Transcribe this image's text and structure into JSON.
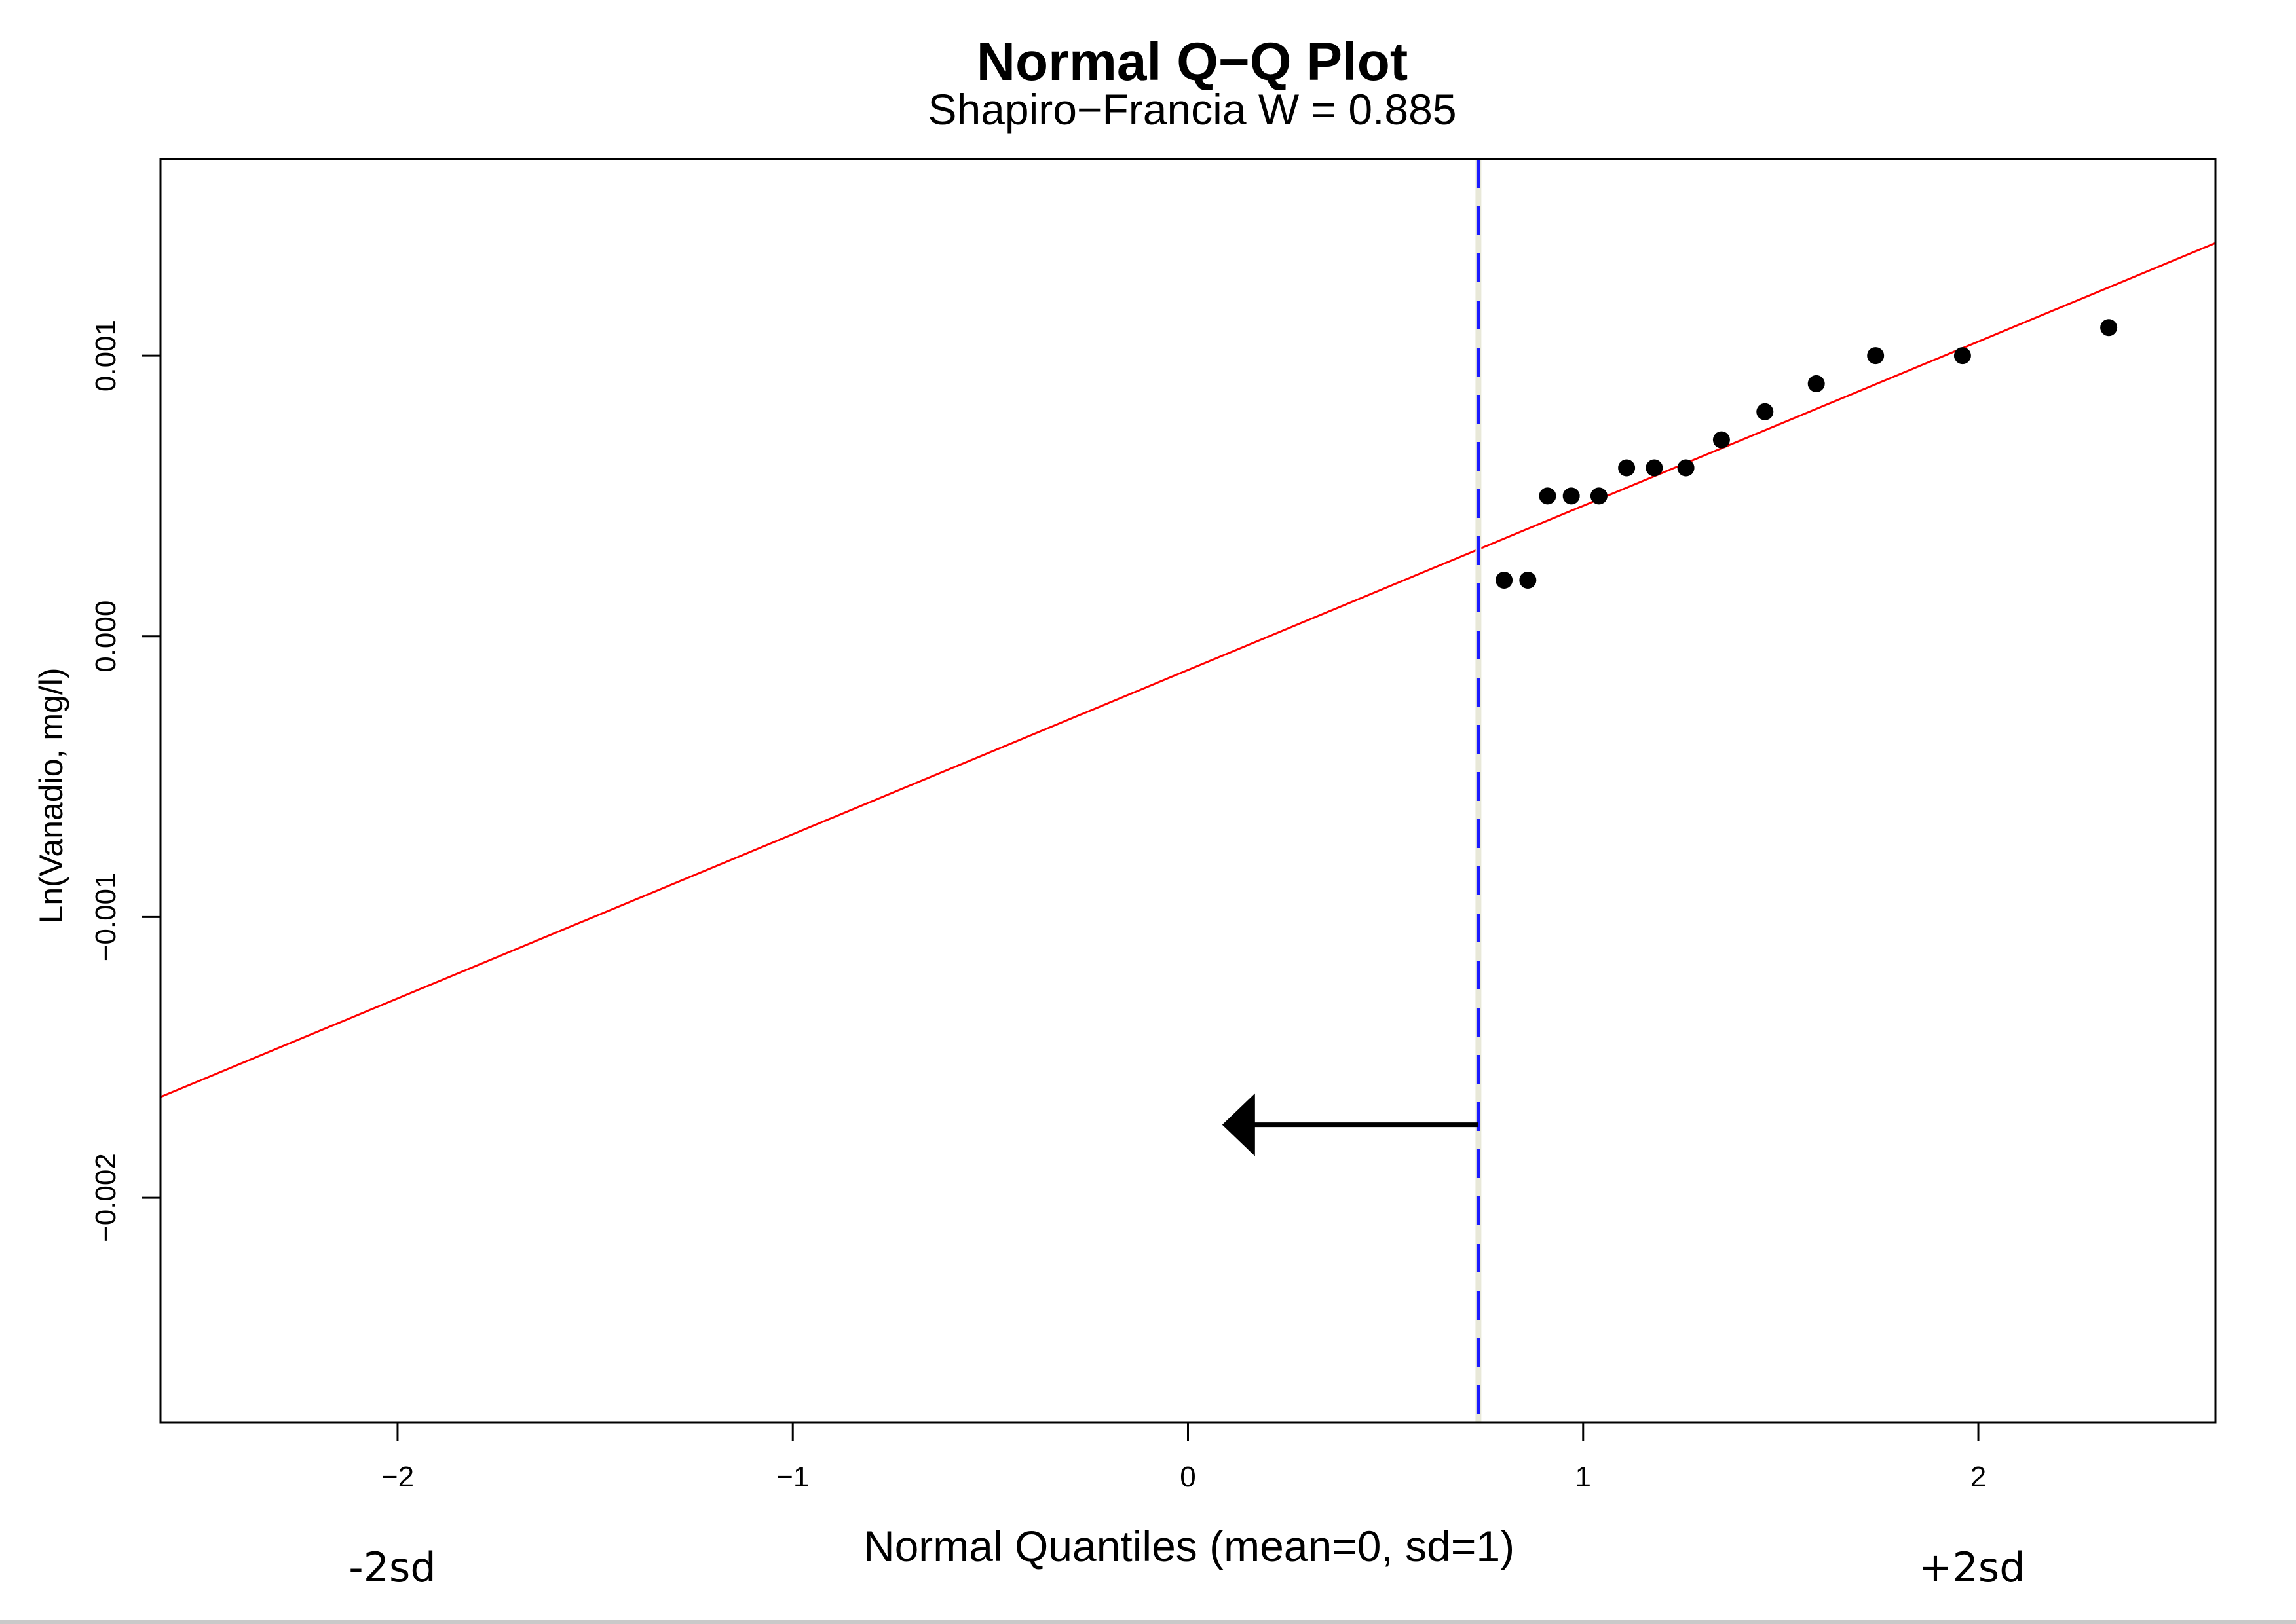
{
  "chart_data": {
    "type": "scatter",
    "title": "Normal Q−Q Plot",
    "subtitle": "Shapiro−Francia W = 0.885",
    "xlabel": "Normal Quantiles (mean=0, sd=1)",
    "ylabel": "Ln(Vanadio, mg/l)",
    "xlim": [
      -2.6,
      2.6
    ],
    "ylim": [
      -0.0028,
      0.0017
    ],
    "x_ticks": [
      -2,
      -1,
      0,
      1,
      2
    ],
    "x_tick_labels": [
      "−2",
      "−1",
      "0",
      "1",
      "2"
    ],
    "y_ticks": [
      -0.002,
      -0.001,
      0.0,
      0.001
    ],
    "y_tick_labels": [
      "−0.002",
      "−0.001",
      "0.000",
      "0.001"
    ],
    "grid": false,
    "points": [
      {
        "x": 0.8,
        "y": 0.0002
      },
      {
        "x": 0.86,
        "y": 0.0002
      },
      {
        "x": 0.91,
        "y": 0.0005
      },
      {
        "x": 0.97,
        "y": 0.0005
      },
      {
        "x": 1.04,
        "y": 0.0005
      },
      {
        "x": 1.11,
        "y": 0.0006
      },
      {
        "x": 1.18,
        "y": 0.0006
      },
      {
        "x": 1.26,
        "y": 0.0006
      },
      {
        "x": 1.35,
        "y": 0.0007
      },
      {
        "x": 1.46,
        "y": 0.0008
      },
      {
        "x": 1.59,
        "y": 0.0009
      },
      {
        "x": 1.74,
        "y": 0.001
      },
      {
        "x": 1.96,
        "y": 0.001
      },
      {
        "x": 2.33,
        "y": 0.0011
      }
    ],
    "reference_line": {
      "intercept": -0.00012,
      "slope": 0.000585,
      "color": "#ff0000"
    },
    "vertical_line": {
      "x": 0.735,
      "color": "#1a1aff",
      "style": "dashed"
    },
    "arrow": {
      "from_x": 0.735,
      "to_x": 0.1,
      "y": -0.00174,
      "direction": "left",
      "color": "#000000"
    },
    "annotations": [
      {
        "text": "-2sd",
        "x": -2
      },
      {
        "text": "+2sd",
        "x": 2
      }
    ],
    "point_color": "#000000"
  }
}
